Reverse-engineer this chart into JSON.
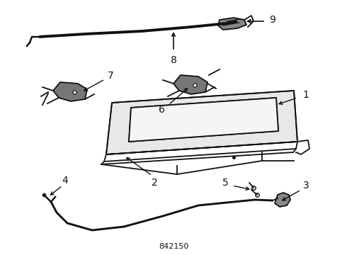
{
  "bg_color": "#ffffff",
  "line_color": "#111111",
  "part_number_label": "842150",
  "figsize": [
    4.9,
    3.6
  ],
  "dpi": 100
}
